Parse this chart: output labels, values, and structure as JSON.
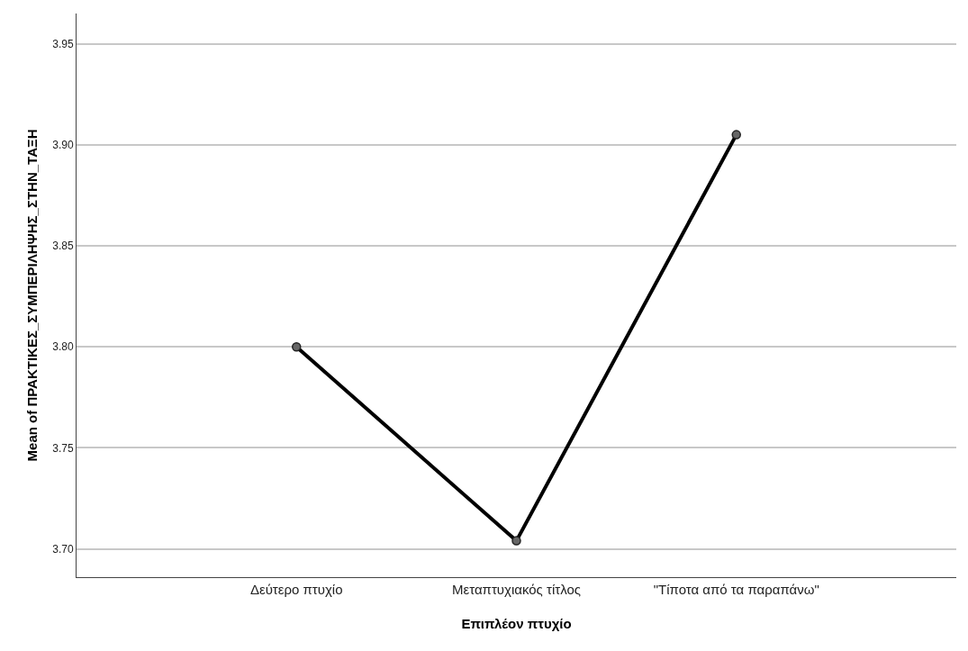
{
  "chart_data": {
    "type": "line",
    "xlabel": "Επιπλέον πτυχίο",
    "ylabel": "Mean of ΠΡΑΚΤΙΚΕΣ_ΣΥΜΠΕΡΙΛΗΨΗΣ_ΣΤΗΝ_ΤΑΞΗ",
    "categories": [
      "Δεύτερο πτυχίο",
      "Μεταπτυχιακός τίτλος",
      "\"Τίποτα από τα παραπάνω\""
    ],
    "series": [
      {
        "color": "#000000",
        "values": [
          3.8,
          3.704,
          3.905
        ]
      }
    ],
    "ylim": [
      3.686,
      3.965
    ],
    "yticks": [
      {
        "value": 3.7,
        "label": "3.70"
      },
      {
        "value": 3.75,
        "label": "3.75"
      },
      {
        "value": 3.8,
        "label": "3.80"
      },
      {
        "value": 3.85,
        "label": "3.85"
      },
      {
        "value": 3.9,
        "label": "3.90"
      },
      {
        "value": 3.95,
        "label": "3.95"
      }
    ],
    "grid": "y",
    "marker": "circle",
    "line_style": "solid"
  }
}
